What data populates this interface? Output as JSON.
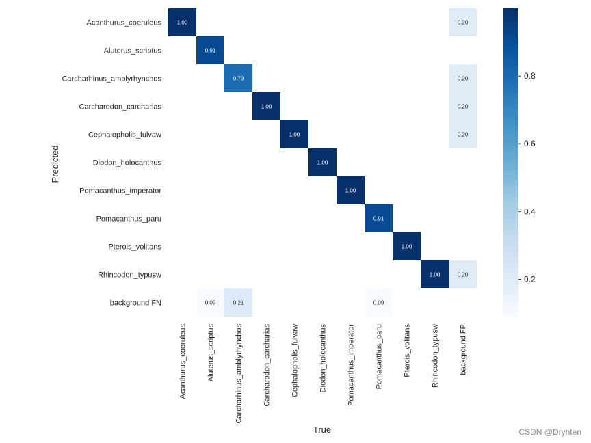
{
  "chart_data": {
    "type": "heatmap",
    "xlabel": "True",
    "ylabel": "Predicted",
    "x_categories": [
      "Acanthurus_coeruleus",
      "Aluterus_scriptus",
      "Carcharhinus_amblyrhynchos",
      "Carcharodon_carcharias",
      "Cephalopholis_fulvaw",
      "Diodon_holocanthus",
      "Pomacanthus_imperator",
      "Pomacanthus_paru",
      "Pterois_volitans",
      "Rhincodon_typusw",
      "background FP"
    ],
    "y_categories": [
      "Acanthurus_coeruleus",
      "Aluterus_scriptus",
      "Carcharhinus_amblyrhynchos",
      "Carcharodon_carcharias",
      "Cephalopholis_fulvaw",
      "Diodon_holocanthus",
      "Pomacanthus_imperator",
      "Pomacanthus_paru",
      "Pterois_volitans",
      "Rhincodon_typusw",
      "background FN"
    ],
    "values": [
      [
        1.0,
        null,
        null,
        null,
        null,
        null,
        null,
        null,
        null,
        null,
        0.2
      ],
      [
        null,
        0.91,
        null,
        null,
        null,
        null,
        null,
        null,
        null,
        null,
        null
      ],
      [
        null,
        null,
        0.79,
        null,
        null,
        null,
        null,
        null,
        null,
        null,
        0.2
      ],
      [
        null,
        null,
        null,
        1.0,
        null,
        null,
        null,
        null,
        null,
        null,
        0.2
      ],
      [
        null,
        null,
        null,
        null,
        1.0,
        null,
        null,
        null,
        null,
        null,
        0.2
      ],
      [
        null,
        null,
        null,
        null,
        null,
        1.0,
        null,
        null,
        null,
        null,
        null
      ],
      [
        null,
        null,
        null,
        null,
        null,
        null,
        1.0,
        null,
        null,
        null,
        null
      ],
      [
        null,
        null,
        null,
        null,
        null,
        null,
        null,
        0.91,
        null,
        null,
        null
      ],
      [
        null,
        null,
        null,
        null,
        null,
        null,
        null,
        null,
        1.0,
        null,
        null
      ],
      [
        null,
        null,
        null,
        null,
        null,
        null,
        null,
        null,
        null,
        1.0,
        0.2
      ],
      [
        null,
        0.09,
        0.21,
        null,
        null,
        null,
        null,
        0.09,
        null,
        null,
        null
      ]
    ],
    "colorbar": {
      "colormap": "Blues",
      "vmin": 0.09,
      "vmax": 1.0,
      "ticks": [
        0.2,
        0.4,
        0.6,
        0.8
      ],
      "tick_labels": [
        "0.2",
        "0.4",
        "0.6",
        "0.8"
      ]
    },
    "grid": false
  },
  "watermark": "CSDN @Dryhten"
}
